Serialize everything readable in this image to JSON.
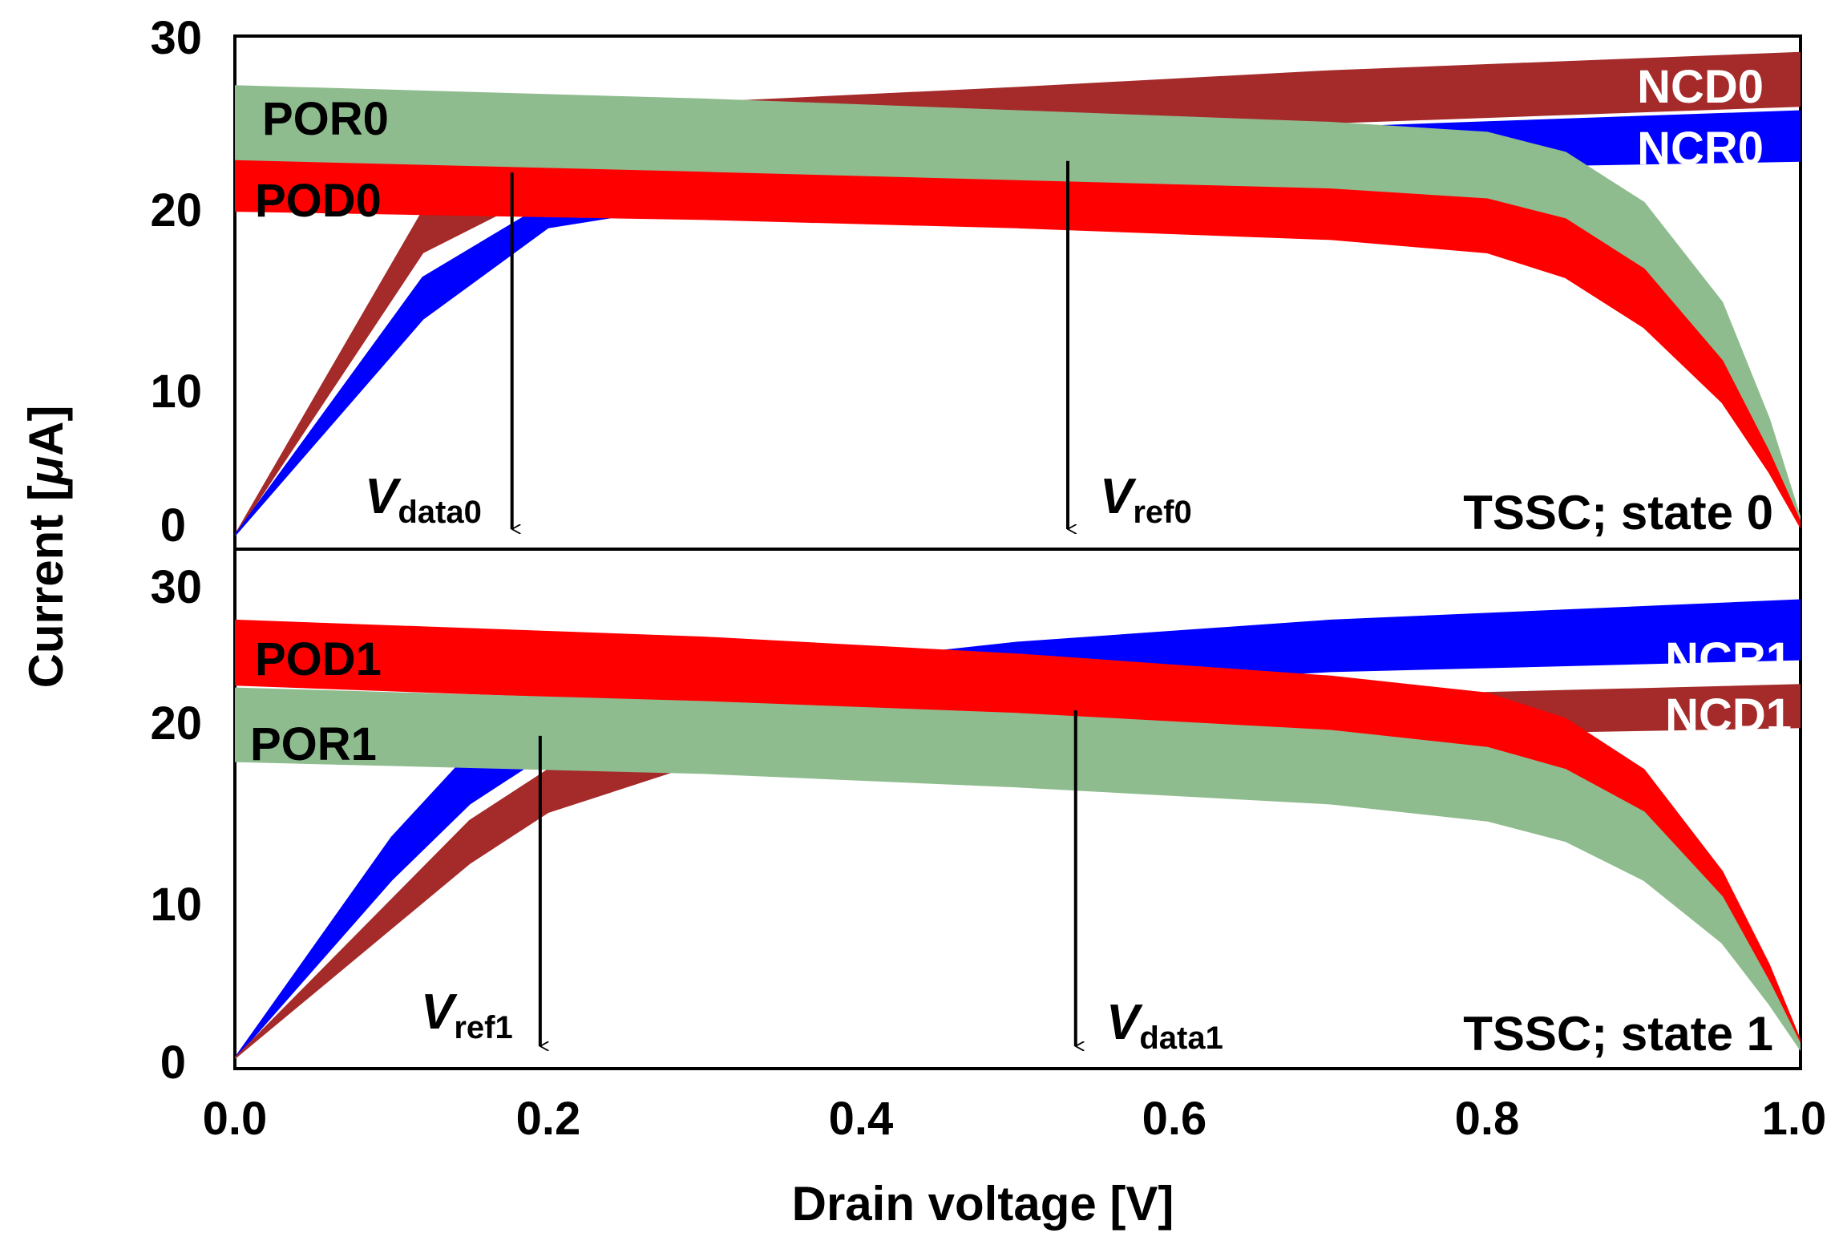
{
  "chart_data": {
    "type": "area",
    "xlabel": "Drain voltage [V]",
    "ylabel_prefix": "Current [",
    "ylabel_mu": "μ",
    "ylabel_suffix": "A]",
    "xlim": [
      0.0,
      1.0
    ],
    "x_ticks": [
      "0.0",
      "0.2",
      "0.4",
      "0.6",
      "0.8",
      "1.0"
    ],
    "colors": {
      "NCD": "#a52a2a",
      "NCR": "#0000ff",
      "POD": "#ff0000",
      "POR": "#8fbc8f"
    },
    "panels": [
      {
        "id": "state0",
        "state_label": "TSSC; state 0",
        "ylim": [
          0,
          30
        ],
        "y_ticks": [
          "0",
          "10",
          "20",
          "30"
        ],
        "series": [
          {
            "name": "NCD0",
            "color": "NCD",
            "upper": {
              "x": [
                0,
                0.12,
                0.2,
                0.3,
                0.5,
                0.7,
                1.0
              ],
              "y": [
                0,
                19.5,
                23.5,
                26.0,
                26.9,
                27.9,
                29.0
              ]
            },
            "lower": {
              "x": [
                0,
                0.12,
                0.2,
                0.3,
                0.5,
                0.7,
                1.0
              ],
              "y": [
                0,
                17.0,
                20.8,
                22.5,
                23.8,
                24.8,
                25.8
              ]
            }
          },
          {
            "name": "NCR0",
            "color": "NCR",
            "upper": {
              "x": [
                0,
                0.12,
                0.2,
                0.3,
                0.5,
                0.7,
                1.0
              ],
              "y": [
                0,
                15.5,
                20.0,
                21.5,
                23.5,
                24.5,
                25.5
              ]
            },
            "lower": {
              "x": [
                0,
                0.12,
                0.2,
                0.3,
                0.5,
                0.7,
                1.0
              ],
              "y": [
                0,
                13.0,
                18.5,
                20.0,
                21.0,
                22.0,
                22.5
              ]
            }
          },
          {
            "name": "POR0",
            "color": "POR",
            "upper": {
              "x": [
                0,
                0.3,
                0.5,
                0.7,
                0.8,
                0.85,
                0.9,
                0.95,
                0.98,
                1.0
              ],
              "y": [
                27.0,
                26.2,
                25.5,
                24.8,
                24.2,
                23.0,
                20.0,
                14.0,
                7.0,
                1.0
              ]
            },
            "lower": {
              "x": [
                0,
                0.3,
                0.5,
                0.7,
                0.8,
                0.85,
                0.9,
                0.95,
                0.98,
                1.0
              ],
              "y": [
                22.0,
                21.3,
                20.6,
                20.0,
                19.3,
                18.0,
                15.0,
                9.5,
                4.5,
                0.6
              ]
            }
          },
          {
            "name": "POD0",
            "color": "POD",
            "upper": {
              "x": [
                0,
                0.3,
                0.5,
                0.7,
                0.8,
                0.85,
                0.9,
                0.95,
                0.98,
                1.0
              ],
              "y": [
                22.5,
                21.8,
                21.3,
                20.8,
                20.2,
                19.0,
                16.0,
                10.5,
                5.0,
                0.8
              ]
            },
            "lower": {
              "x": [
                0,
                0.3,
                0.5,
                0.7,
                0.8,
                0.85,
                0.9,
                0.95,
                0.98,
                1.0
              ],
              "y": [
                19.5,
                19.0,
                18.5,
                17.8,
                17.0,
                15.5,
                12.5,
                8.0,
                3.8,
                0.5
              ]
            }
          }
        ],
        "labels": [
          {
            "text": "NCD0",
            "color": "#ffffff"
          },
          {
            "text": "NCR0",
            "color": "#ffffff"
          },
          {
            "text": "POR0",
            "color": "#000000"
          },
          {
            "text": "POD0",
            "color": "#000000"
          }
        ],
        "arrows": [
          {
            "x": 0.177,
            "y_from": 21.8,
            "main": "V",
            "sub": "data0"
          },
          {
            "x": 0.532,
            "y_from": 22.5,
            "main": "V",
            "sub": "ref0"
          }
        ]
      },
      {
        "id": "state1",
        "state_label": "TSSC; state 1",
        "ylim": [
          0,
          30
        ],
        "y_ticks": [
          "0",
          "10",
          "20",
          "30"
        ],
        "series": [
          {
            "name": "NCR1",
            "color": "NCR",
            "upper": {
              "x": [
                0,
                0.1,
                0.15,
                0.2,
                0.3,
                0.5,
                0.7,
                1.0
              ],
              "y": [
                0,
                13.0,
                18.0,
                20.5,
                22.5,
                24.5,
                25.8,
                27.0
              ]
            },
            "lower": {
              "x": [
                0,
                0.1,
                0.15,
                0.2,
                0.3,
                0.5,
                0.7,
                1.0
              ],
              "y": [
                0,
                10.5,
                15.0,
                18.0,
                20.5,
                21.8,
                22.8,
                23.5
              ]
            }
          },
          {
            "name": "NCD1",
            "color": "NCD",
            "upper": {
              "x": [
                0,
                0.15,
                0.2,
                0.3,
                0.5,
                0.7,
                1.0
              ],
              "y": [
                0,
                14.0,
                17.0,
                19.5,
                20.5,
                21.3,
                22.0
              ]
            },
            "lower": {
              "x": [
                0,
                0.15,
                0.2,
                0.3,
                0.5,
                0.7,
                1.0
              ],
              "y": [
                0,
                11.5,
                14.5,
                17.5,
                18.5,
                19.0,
                19.5
              ]
            }
          },
          {
            "name": "POD1",
            "color": "POD",
            "upper": {
              "x": [
                0,
                0.3,
                0.5,
                0.7,
                0.8,
                0.85,
                0.9,
                0.95,
                0.98,
                1.0
              ],
              "y": [
                25.8,
                24.8,
                23.8,
                22.5,
                21.5,
                20.0,
                17.0,
                11.0,
                5.5,
                1.0
              ]
            },
            "lower": {
              "x": [
                0,
                0.3,
                0.5,
                0.7,
                0.8,
                0.85,
                0.9,
                0.95,
                0.98,
                1.0
              ],
              "y": [
                22.0,
                21.0,
                20.0,
                18.8,
                17.5,
                16.0,
                13.0,
                8.5,
                4.0,
                0.6
              ]
            }
          },
          {
            "name": "POR1",
            "color": "POR",
            "upper": {
              "x": [
                0,
                0.3,
                0.5,
                0.7,
                0.8,
                0.85,
                0.9,
                0.95,
                0.98,
                1.0
              ],
              "y": [
                21.8,
                21.0,
                20.3,
                19.3,
                18.3,
                17.0,
                14.5,
                9.5,
                4.5,
                0.8
              ]
            },
            "lower": {
              "x": [
                0,
                0.3,
                0.5,
                0.7,
                0.8,
                0.85,
                0.9,
                0.95,
                0.98,
                1.0
              ],
              "y": [
                17.5,
                16.8,
                16.0,
                15.0,
                14.0,
                12.8,
                10.5,
                6.8,
                3.2,
                0.5
              ]
            }
          }
        ],
        "labels": [
          {
            "text": "NCR1",
            "color": "#ffffff"
          },
          {
            "text": "NCD1",
            "color": "#ffffff"
          },
          {
            "text": "POD1",
            "color": "#000000"
          },
          {
            "text": "POR1",
            "color": "#000000"
          }
        ],
        "arrows": [
          {
            "x": 0.195,
            "y_from": 19.0,
            "main": "V",
            "sub": "ref1"
          },
          {
            "x": 0.537,
            "y_from": 20.5,
            "main": "V",
            "sub": "data1"
          }
        ]
      }
    ]
  }
}
